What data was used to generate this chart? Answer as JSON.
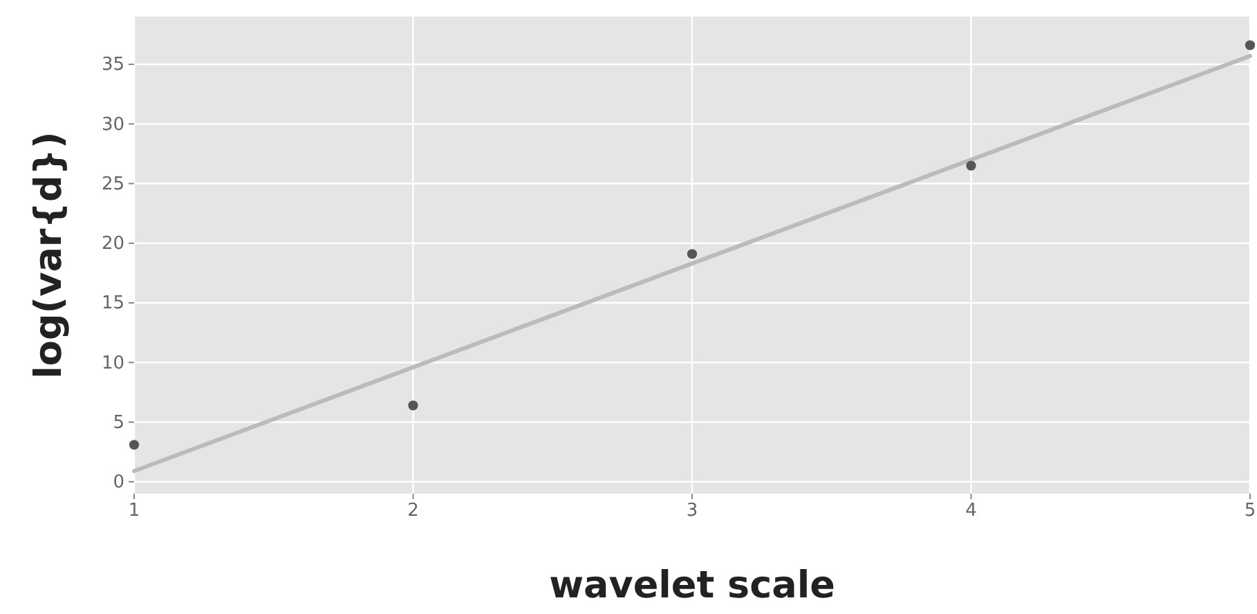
{
  "chart_data": {
    "type": "scatter",
    "xlabel": "wavelet scale",
    "ylabel": "log(var{d})",
    "xlim": [
      1,
      5
    ],
    "ylim": [
      -1,
      39
    ],
    "xticks": [
      1,
      2,
      3,
      4,
      5
    ],
    "yticks": [
      0,
      5,
      10,
      15,
      20,
      25,
      30,
      35
    ],
    "grid": true,
    "series": [
      {
        "type": "line",
        "color": "#bbbbbb",
        "x": [
          1,
          5
        ],
        "values": [
          0.9,
          35.7
        ]
      },
      {
        "type": "scatter",
        "color": "#555555",
        "x": [
          1,
          2,
          3,
          4,
          5
        ],
        "values": [
          3.1,
          6.4,
          19.1,
          26.5,
          36.6
        ],
        "marker": "circle"
      }
    ]
  }
}
